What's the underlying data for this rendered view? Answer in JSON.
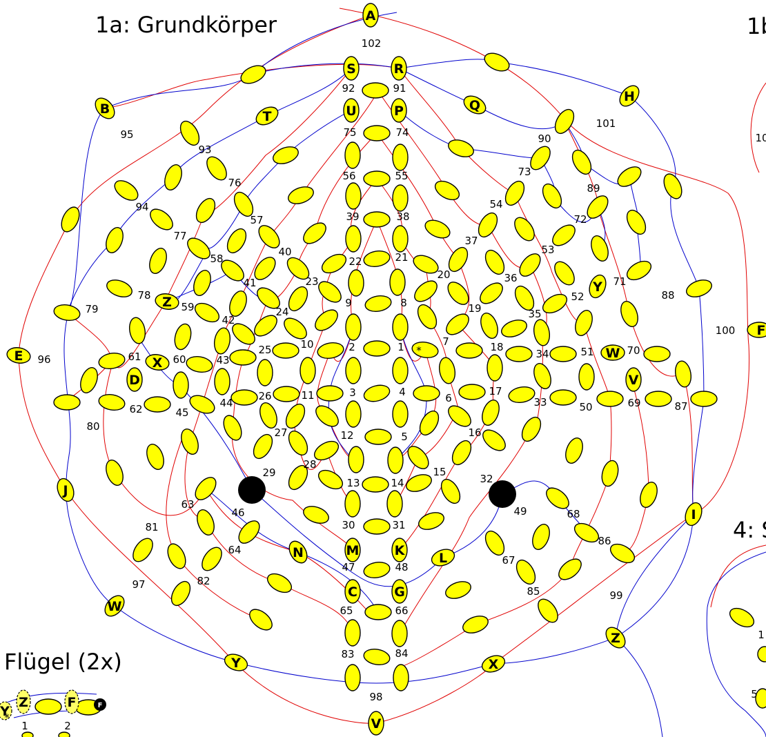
{
  "titles": {
    "main": "1a: Grundkörper",
    "right_top": "1b",
    "right_mid": "4: S",
    "wing": "Flügel (2x)"
  },
  "colors": {
    "pad": "#ffff00",
    "red_wire": "#e00000",
    "blue_wire": "#0000cc",
    "hole": "#000000"
  },
  "number_labels": [
    "102",
    "92",
    "91",
    "75",
    "74",
    "56",
    "55",
    "39",
    "38",
    "22",
    "21",
    "9",
    "8",
    "2",
    "1",
    "7",
    "3",
    "4",
    "6",
    "5",
    "12",
    "13",
    "14",
    "15",
    "16",
    "17",
    "18",
    "19",
    "20",
    "23",
    "24",
    "25",
    "10",
    "11",
    "26",
    "27",
    "28",
    "29",
    "30",
    "31",
    "32",
    "33",
    "34",
    "35",
    "36",
    "37",
    "40",
    "41",
    "42",
    "43",
    "44",
    "45",
    "46",
    "47",
    "48",
    "49",
    "50",
    "51",
    "52",
    "53",
    "54",
    "57",
    "58",
    "59",
    "60",
    "61",
    "62",
    "63",
    "64",
    "65",
    "66",
    "67",
    "68",
    "69",
    "70",
    "71",
    "72",
    "73",
    "76",
    "77",
    "78",
    "79",
    "80",
    "81",
    "82",
    "83",
    "84",
    "85",
    "86",
    "87",
    "88",
    "89",
    "90",
    "93",
    "94",
    "95",
    "96",
    "97",
    "98",
    "99",
    "100",
    "101",
    "10",
    "1",
    "5",
    "1",
    "2"
  ],
  "letter_labels": [
    "A",
    "S",
    "R",
    "U",
    "P",
    "Q",
    "H",
    "B",
    "T",
    "Z",
    "Y",
    "X",
    "W",
    "D",
    "V",
    "E",
    "F",
    "J",
    "I",
    "N",
    "M",
    "K",
    "L",
    "C",
    "G",
    "W",
    "Z",
    "Y",
    "X",
    "V",
    "Y",
    "Z",
    "F"
  ],
  "asterisk": "*"
}
